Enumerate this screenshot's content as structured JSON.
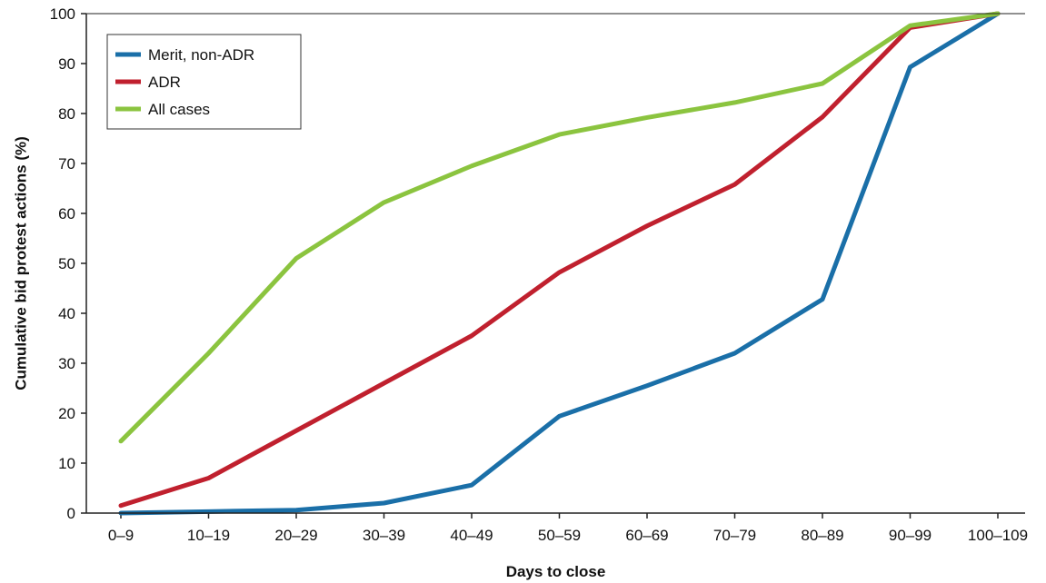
{
  "chart_data": {
    "type": "line",
    "title": "",
    "xlabel": "Days to close",
    "ylabel": "Cumulative bid protest actions (%)",
    "categories": [
      "0–9",
      "10–19",
      "20–29",
      "30–39",
      "40–49",
      "50–59",
      "60–69",
      "70–79",
      "80–89",
      "90–99",
      "100–109"
    ],
    "ylim": [
      0,
      100
    ],
    "yticks": [
      "0",
      "10",
      "20",
      "30",
      "40",
      "50",
      "60",
      "70",
      "80",
      "90",
      "100"
    ],
    "grid": false,
    "legend_position": "top-left",
    "series": [
      {
        "name": "Merit, non-ADR",
        "color": "#1a6fa8",
        "values": [
          0,
          0.3,
          0.6,
          2,
          5.6,
          19.4,
          25.5,
          32,
          42.8,
          89.3,
          100
        ]
      },
      {
        "name": "ADR",
        "color": "#c0202e",
        "values": [
          1.5,
          7,
          16.5,
          26,
          35.5,
          48.2,
          57.5,
          65.8,
          79.3,
          97.2,
          100
        ]
      },
      {
        "name": "All cases",
        "color": "#8bc43f",
        "values": [
          14.4,
          32,
          51,
          62.2,
          69.5,
          75.8,
          79.2,
          82.2,
          86,
          97.6,
          100
        ]
      }
    ]
  }
}
